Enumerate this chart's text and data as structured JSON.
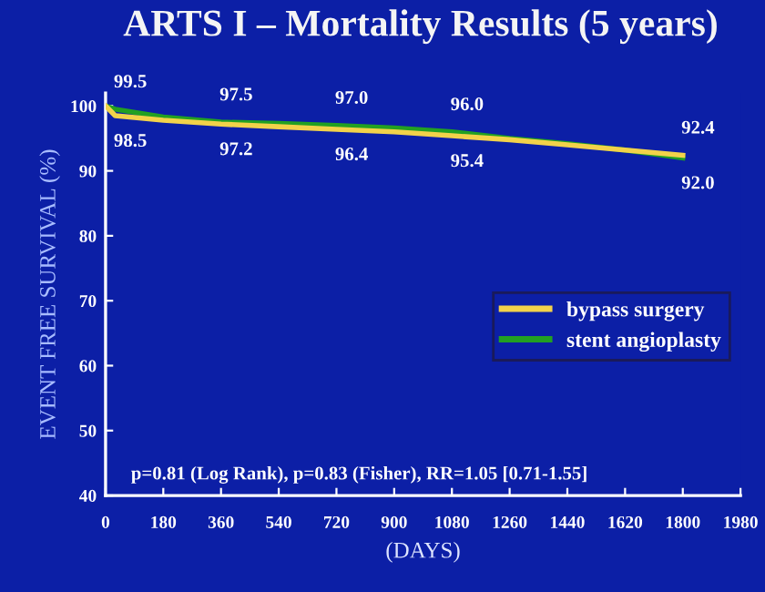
{
  "chart_data": {
    "type": "line",
    "title": "ARTS I – Mortality Results (5 years)",
    "xlabel": "(DAYS)",
    "ylabel": "EVENT FREE SURVIVAL (%)",
    "x": [
      0,
      30,
      180,
      360,
      540,
      720,
      900,
      1080,
      1260,
      1440,
      1620,
      1800
    ],
    "series": [
      {
        "name": "bypass surgery",
        "color": "#f2d24a",
        "values": [
          100,
          98.5,
          97.8,
          97.2,
          96.8,
          96.4,
          96.0,
          95.4,
          94.8,
          94.0,
          93.2,
          92.4
        ],
        "value_labels": [
          null,
          "98.5",
          null,
          "97.2",
          null,
          "96.4",
          null,
          "95.4",
          null,
          null,
          null,
          "92.4"
        ]
      },
      {
        "name": "stent angioplasty",
        "color": "#22a022",
        "values": [
          100,
          99.5,
          98.3,
          97.5,
          97.3,
          97.0,
          96.6,
          96.0,
          95.0,
          94.2,
          93.2,
          92.0
        ],
        "value_labels": [
          null,
          "99.5",
          null,
          "97.5",
          null,
          "97.0",
          null,
          "96.0",
          null,
          null,
          null,
          "92.0"
        ]
      }
    ],
    "xlim": [
      0,
      1980
    ],
    "xticks": [
      0,
      180,
      360,
      540,
      720,
      900,
      1080,
      1260,
      1440,
      1620,
      1800,
      1980
    ],
    "ylim": [
      40,
      102
    ],
    "yticks": [
      40,
      50,
      60,
      70,
      80,
      90,
      100
    ],
    "grid": false,
    "legend": "right",
    "marker": "none",
    "line_style": "solid",
    "annotations": [
      "p=0.81 (Log Rank), p=0.83 (Fisher), RR=1.05 [0.71-1.55]"
    ]
  }
}
